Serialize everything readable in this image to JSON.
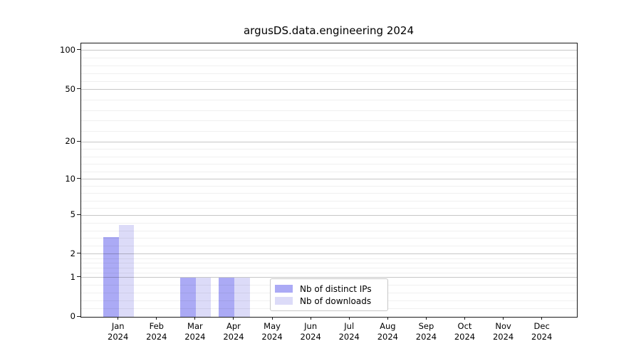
{
  "title": "argusDS.data.engineering 2024",
  "colors": {
    "distinct_ips": "#abaaf5",
    "downloads": "#dcdbf8",
    "grid_major": "rgba(0,0,0,0.22)",
    "grid_minor": "rgba(0,0,0,0.06)",
    "spine": "#1a1a1a"
  },
  "y_axis": {
    "tick_labels": [
      "100",
      "50",
      "20",
      "10",
      "5",
      "2",
      "1",
      "0"
    ],
    "tick_values": [
      100,
      50,
      20,
      10,
      5,
      2,
      1,
      0
    ]
  },
  "x_axis": {
    "months": [
      "Jan",
      "Feb",
      "Mar",
      "Apr",
      "May",
      "Jun",
      "Jul",
      "Aug",
      "Sep",
      "Oct",
      "Nov",
      "Dec"
    ],
    "year": "2024"
  },
  "legend": {
    "items": [
      {
        "label": "Nb of distinct IPs",
        "color": "#abaaf5"
      },
      {
        "label": "Nb of downloads",
        "color": "#dcdbf8"
      }
    ]
  },
  "chart_data": {
    "type": "bar",
    "title": "argusDS.data.engineering 2024",
    "categories": [
      "Jan 2024",
      "Feb 2024",
      "Mar 2024",
      "Apr 2024",
      "May 2024",
      "Jun 2024",
      "Jul 2024",
      "Aug 2024",
      "Sep 2024",
      "Oct 2024",
      "Nov 2024",
      "Dec 2024"
    ],
    "series": [
      {
        "name": "Nb of distinct IPs",
        "color": "#abaaf5",
        "values": [
          3,
          0,
          1,
          1,
          0,
          0,
          0,
          0,
          0,
          0,
          0,
          0
        ]
      },
      {
        "name": "Nb of downloads",
        "color": "#dcdbf8",
        "values": [
          4,
          0,
          1,
          1,
          0,
          0,
          0,
          0,
          0,
          0,
          0,
          0
        ]
      }
    ],
    "yscale": "symlog",
    "y_ticks": [
      0,
      1,
      2,
      5,
      10,
      20,
      50,
      100
    ],
    "ylim": [
      0,
      115
    ],
    "grid": true,
    "legend_position": "lower center inside plot"
  }
}
